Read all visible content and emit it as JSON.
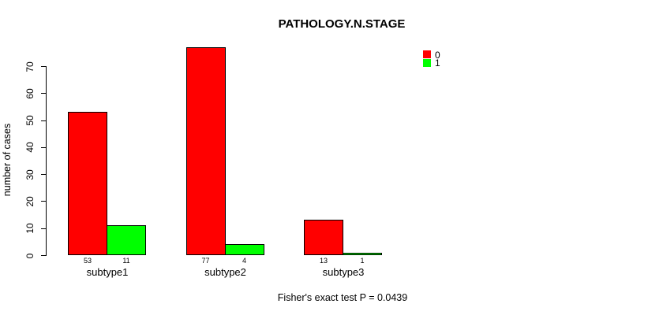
{
  "chart": {
    "title": "PATHOLOGY.N.STAGE",
    "ylabel": "number of cases",
    "footer": "Fisher's exact test P = 0.0439"
  },
  "chart_data": {
    "type": "bar",
    "title": "PATHOLOGY.N.STAGE",
    "xlabel": "",
    "ylabel": "number of cases",
    "categories": [
      "subtype1",
      "subtype2",
      "subtype3"
    ],
    "series": [
      {
        "name": "0",
        "color": "#ff0000",
        "values": [
          53,
          77,
          13
        ]
      },
      {
        "name": "1",
        "color": "#00ff00",
        "values": [
          11,
          4,
          1
        ]
      }
    ],
    "ylim": [
      0,
      70
    ],
    "yticks": [
      0,
      10,
      20,
      30,
      40,
      50,
      60,
      70
    ],
    "show_values_under_bars": true,
    "grid": false,
    "legend_position": "top-right",
    "annotation": "Fisher's exact test P = 0.0439"
  }
}
